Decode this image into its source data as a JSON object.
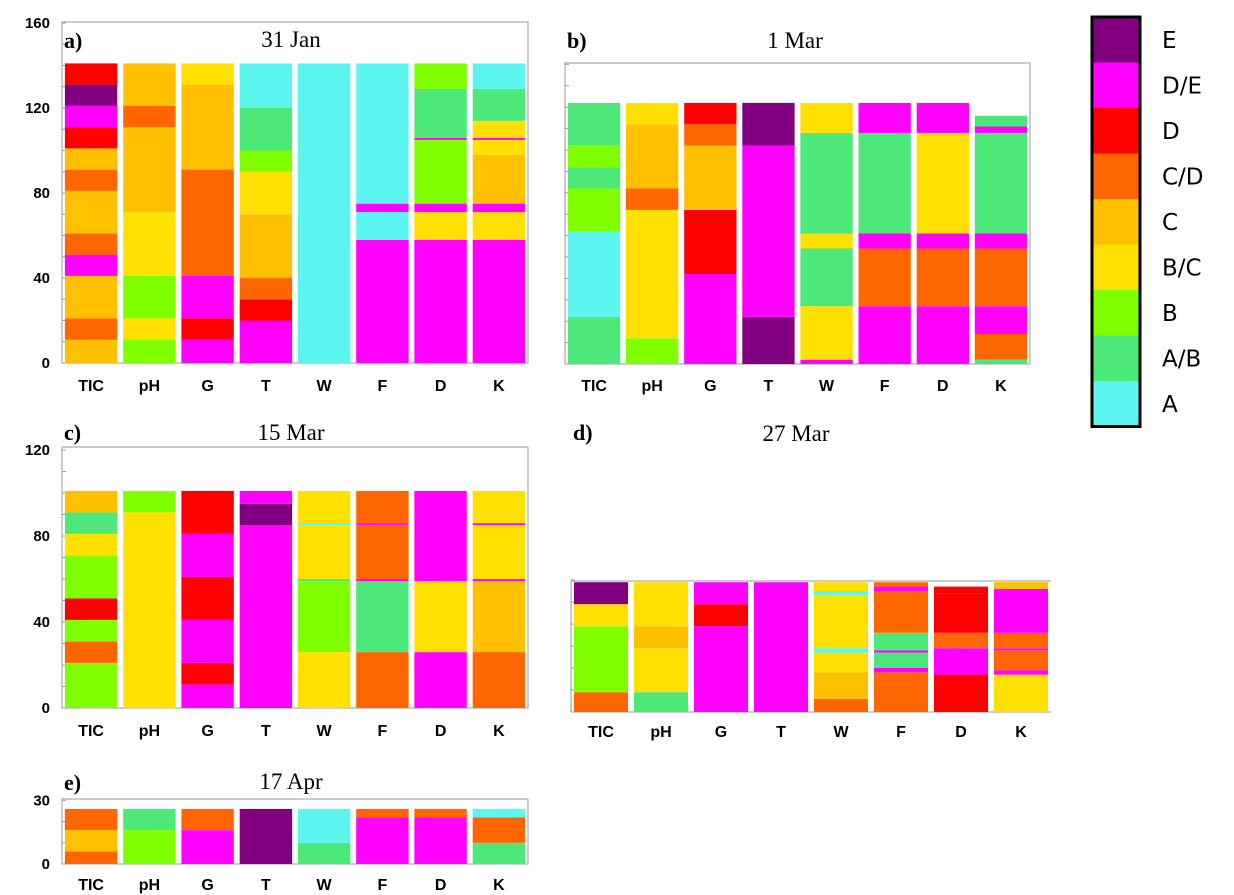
{
  "chart_data": [
    {
      "type": "bar",
      "stacked": true,
      "panel_label": "a)",
      "title": "31 Jan",
      "categories": [
        "TIC",
        "pH",
        "G",
        "T",
        "W",
        "F",
        "D",
        "K"
      ],
      "ylim": [
        0,
        160
      ],
      "yticks": [
        "0",
        "40",
        "80",
        "120",
        "160"
      ],
      "stacks": [
        [
          {
            "c": "C",
            "v": 11
          },
          {
            "c": "C/D",
            "v": 10
          },
          {
            "c": "C",
            "v": 20
          },
          {
            "c": "D/E",
            "v": 10
          },
          {
            "c": "C/D",
            "v": 10
          },
          {
            "c": "C",
            "v": 20
          },
          {
            "c": "C/D",
            "v": 10
          },
          {
            "c": "C",
            "v": 10
          },
          {
            "c": "D",
            "v": 10
          },
          {
            "c": "D/E",
            "v": 10
          },
          {
            "c": "E",
            "v": 10
          },
          {
            "c": "D",
            "v": 10
          }
        ],
        [
          {
            "c": "B",
            "v": 11
          },
          {
            "c": "B/C",
            "v": 10
          },
          {
            "c": "B",
            "v": 20
          },
          {
            "c": "B/C",
            "v": 10
          },
          {
            "c": "B/C",
            "v": 20
          },
          {
            "c": "C",
            "v": 40
          },
          {
            "c": "C/D",
            "v": 10
          },
          {
            "c": "C",
            "v": 20
          }
        ],
        [
          {
            "c": "D/E",
            "v": 11
          },
          {
            "c": "D",
            "v": 10
          },
          {
            "c": "D/E",
            "v": 20
          },
          {
            "c": "C/D",
            "v": 50
          },
          {
            "c": "C",
            "v": 40
          },
          {
            "c": "B/C",
            "v": 10
          }
        ],
        [
          {
            "c": "D/E",
            "v": 20
          },
          {
            "c": "D",
            "v": 10
          },
          {
            "c": "C/D",
            "v": 10
          },
          {
            "c": "C",
            "v": 30
          },
          {
            "c": "B/C",
            "v": 20
          },
          {
            "c": "B",
            "v": 10
          },
          {
            "c": "A/B",
            "v": 20
          },
          {
            "c": "A",
            "v": 21
          }
        ],
        [
          {
            "c": "A",
            "v": 141
          }
        ],
        [
          {
            "c": "D/E",
            "v": 58
          },
          {
            "c": "A",
            "v": 13
          },
          {
            "c": "D/E",
            "v": 4
          },
          {
            "c": "A",
            "v": 66
          }
        ],
        [
          {
            "c": "D/E",
            "v": 58
          },
          {
            "c": "B/C",
            "v": 13
          },
          {
            "c": "D/E",
            "v": 4
          },
          {
            "c": "B",
            "v": 30
          },
          {
            "c": "D/E",
            "v": 1
          },
          {
            "c": "A/B",
            "v": 23
          },
          {
            "c": "B",
            "v": 12
          }
        ],
        [
          {
            "c": "D/E",
            "v": 58
          },
          {
            "c": "B/C",
            "v": 13
          },
          {
            "c": "D/E",
            "v": 4
          },
          {
            "c": "C",
            "v": 23
          },
          {
            "c": "B/C",
            "v": 7
          },
          {
            "c": "D/E",
            "v": 1
          },
          {
            "c": "B/C",
            "v": 8
          },
          {
            "c": "A/B",
            "v": 15
          },
          {
            "c": "A",
            "v": 12
          }
        ]
      ]
    },
    {
      "type": "bar",
      "stacked": true,
      "panel_label": "b)",
      "title": "1 Mar",
      "categories": [
        "TIC",
        "pH",
        "G",
        "T",
        "W",
        "F",
        "D",
        "K"
      ],
      "ylim": [
        0,
        140
      ],
      "yticks": [],
      "stacks": [
        [
          {
            "c": "A/B",
            "v": 22
          },
          {
            "c": "A",
            "v": 40
          },
          {
            "c": "B",
            "v": 20
          },
          {
            "c": "A/B",
            "v": 10
          },
          {
            "c": "B",
            "v": 10
          },
          {
            "c": "A/B",
            "v": 20
          }
        ],
        [
          {
            "c": "B",
            "v": 12
          },
          {
            "c": "B/C",
            "v": 60
          },
          {
            "c": "C/D",
            "v": 10
          },
          {
            "c": "C",
            "v": 30
          },
          {
            "c": "B/C",
            "v": 10
          }
        ],
        [
          {
            "c": "D/E",
            "v": 42
          },
          {
            "c": "D",
            "v": 30
          },
          {
            "c": "C",
            "v": 30
          },
          {
            "c": "C/D",
            "v": 10
          },
          {
            "c": "D",
            "v": 10
          }
        ],
        [
          {
            "c": "E",
            "v": 22
          },
          {
            "c": "D/E",
            "v": 80
          },
          {
            "c": "E",
            "v": 20
          }
        ],
        [
          {
            "c": "D/E",
            "v": 2
          },
          {
            "c": "B/C",
            "v": 25
          },
          {
            "c": "A/B",
            "v": 27
          },
          {
            "c": "B/C",
            "v": 7
          },
          {
            "c": "A/B",
            "v": 47
          },
          {
            "c": "B/C",
            "v": 14
          }
        ],
        [
          {
            "c": "D/E",
            "v": 27
          },
          {
            "c": "C/D",
            "v": 27
          },
          {
            "c": "D/E",
            "v": 7
          },
          {
            "c": "A/B",
            "v": 47
          },
          {
            "c": "D/E",
            "v": 14
          }
        ],
        [
          {
            "c": "D/E",
            "v": 27
          },
          {
            "c": "C/D",
            "v": 27
          },
          {
            "c": "D/E",
            "v": 7
          },
          {
            "c": "B/C",
            "v": 47
          },
          {
            "c": "D/E",
            "v": 14
          }
        ],
        [
          {
            "c": "A/B",
            "v": 2
          },
          {
            "c": "C/D",
            "v": 12
          },
          {
            "c": "D/E",
            "v": 13
          },
          {
            "c": "C/D",
            "v": 27
          },
          {
            "c": "D/E",
            "v": 7
          },
          {
            "c": "A/B",
            "v": 47
          },
          {
            "c": "D/E",
            "v": 3
          },
          {
            "c": "A/B",
            "v": 5
          }
        ]
      ]
    },
    {
      "type": "bar",
      "stacked": true,
      "panel_label": "c)",
      "title": "15 Mar",
      "categories": [
        "TIC",
        "pH",
        "G",
        "T",
        "W",
        "F",
        "D",
        "K"
      ],
      "ylim": [
        0,
        120
      ],
      "yticks": [
        "0",
        "40",
        "80",
        "120"
      ],
      "stacks": [
        [
          {
            "c": "B",
            "v": 21
          },
          {
            "c": "C/D",
            "v": 10
          },
          {
            "c": "B",
            "v": 10
          },
          {
            "c": "D",
            "v": 10
          },
          {
            "c": "B",
            "v": 20
          },
          {
            "c": "B/C",
            "v": 10
          },
          {
            "c": "A/B",
            "v": 10
          },
          {
            "c": "C",
            "v": 10
          }
        ],
        [
          {
            "c": "B/C",
            "v": 91
          },
          {
            "c": "B",
            "v": 10
          }
        ],
        [
          {
            "c": "D/E",
            "v": 11
          },
          {
            "c": "D",
            "v": 10
          },
          {
            "c": "D/E",
            "v": 20
          },
          {
            "c": "D",
            "v": 20
          },
          {
            "c": "D/E",
            "v": 20
          },
          {
            "c": "D",
            "v": 20
          }
        ],
        [
          {
            "c": "D/E",
            "v": 85
          },
          {
            "c": "E",
            "v": 10
          },
          {
            "c": "D/E",
            "v": 6
          }
        ],
        [
          {
            "c": "B/C",
            "v": 26
          },
          {
            "c": "B",
            "v": 33
          },
          {
            "c": "A/B",
            "v": 1
          },
          {
            "c": "B/C",
            "v": 25
          },
          {
            "c": "A",
            "v": 1
          },
          {
            "c": "B/C",
            "v": 15
          }
        ],
        [
          {
            "c": "C/D",
            "v": 26
          },
          {
            "c": "A/B",
            "v": 33
          },
          {
            "c": "D/E",
            "v": 1
          },
          {
            "c": "C/D",
            "v": 25
          },
          {
            "c": "D/E",
            "v": 1
          },
          {
            "c": "C/D",
            "v": 15
          }
        ],
        [
          {
            "c": "D/E",
            "v": 26
          },
          {
            "c": "B/C",
            "v": 33
          },
          {
            "c": "D/E",
            "v": 42
          }
        ],
        [
          {
            "c": "C/D",
            "v": 26
          },
          {
            "c": "C",
            "v": 33
          },
          {
            "c": "D/E",
            "v": 1
          },
          {
            "c": "B/C",
            "v": 25
          },
          {
            "c": "D/E",
            "v": 1
          },
          {
            "c": "B/C",
            "v": 15
          }
        ]
      ]
    },
    {
      "type": "bar",
      "stacked": true,
      "panel_label": "d)",
      "title": "27 Mar",
      "categories": [
        "TIC",
        "pH",
        "G",
        "T",
        "W",
        "F",
        "D",
        "K"
      ],
      "ylim": [
        0,
        60
      ],
      "yticks": [],
      "stacks": [
        [
          {
            "c": "C/D",
            "v": 9
          },
          {
            "c": "B",
            "v": 30
          },
          {
            "c": "B/C",
            "v": 10
          },
          {
            "c": "E",
            "v": 10
          }
        ],
        [
          {
            "c": "A/B",
            "v": 9
          },
          {
            "c": "B/C",
            "v": 20
          },
          {
            "c": "C",
            "v": 10
          },
          {
            "c": "B/C",
            "v": 20
          }
        ],
        [
          {
            "c": "D/E",
            "v": 39
          },
          {
            "c": "D",
            "v": 10
          },
          {
            "c": "D/E",
            "v": 10
          }
        ],
        [
          {
            "c": "D/E",
            "v": 59
          }
        ],
        [
          {
            "c": "C/D",
            "v": 6
          },
          {
            "c": "C",
            "v": 12
          },
          {
            "c": "B/C",
            "v": 9
          },
          {
            "c": "A",
            "v": 2
          },
          {
            "c": "B/C",
            "v": 24
          },
          {
            "c": "A",
            "v": 2
          },
          {
            "c": "B/C",
            "v": 4
          }
        ],
        [
          {
            "c": "C/D",
            "v": 18
          },
          {
            "c": "D/E",
            "v": 2
          },
          {
            "c": "A/B",
            "v": 7
          },
          {
            "c": "D/E",
            "v": 1
          },
          {
            "c": "A/B",
            "v": 8
          },
          {
            "c": "C/D",
            "v": 19
          },
          {
            "c": "D/E",
            "v": 2
          },
          {
            "c": "C/D",
            "v": 2
          }
        ],
        [
          {
            "c": "D",
            "v": 17
          },
          {
            "c": "D/E",
            "v": 12
          },
          {
            "c": "C/D",
            "v": 7
          },
          {
            "c": "D",
            "v": 18
          },
          {
            "c": "D",
            "v": 3
          }
        ],
        [
          {
            "c": "B/C",
            "v": 17
          },
          {
            "c": "D/E",
            "v": 2
          },
          {
            "c": "C/D",
            "v": 9
          },
          {
            "c": "D/E",
            "v": 1
          },
          {
            "c": "C/D",
            "v": 7
          },
          {
            "c": "D/E",
            "v": 20
          },
          {
            "c": "C",
            "v": 3
          }
        ]
      ]
    },
    {
      "type": "bar",
      "stacked": true,
      "panel_label": "e)",
      "title": "17 Apr",
      "categories": [
        "TIC",
        "pH",
        "G",
        "T",
        "W",
        "F",
        "D",
        "K"
      ],
      "ylim": [
        0,
        30
      ],
      "yticks": [
        "0",
        "30"
      ],
      "stacks": [
        [
          {
            "c": "C/D",
            "v": 6
          },
          {
            "c": "C",
            "v": 10
          },
          {
            "c": "C/D",
            "v": 10
          }
        ],
        [
          {
            "c": "B",
            "v": 16
          },
          {
            "c": "A/B",
            "v": 10
          }
        ],
        [
          {
            "c": "D/E",
            "v": 16
          },
          {
            "c": "C/D",
            "v": 10
          }
        ],
        [
          {
            "c": "E",
            "v": 26
          }
        ],
        [
          {
            "c": "A/B",
            "v": 10
          },
          {
            "c": "A",
            "v": 16
          }
        ],
        [
          {
            "c": "D/E",
            "v": 22
          },
          {
            "c": "C/D",
            "v": 4
          }
        ],
        [
          {
            "c": "D/E",
            "v": 22
          },
          {
            "c": "C/D",
            "v": 4
          }
        ],
        [
          {
            "c": "A/B",
            "v": 10
          },
          {
            "c": "C/D",
            "v": 12
          },
          {
            "c": "A",
            "v": 4
          }
        ]
      ]
    }
  ],
  "legend": {
    "placement": "right",
    "items": [
      {
        "label": "E",
        "color": "#800080"
      },
      {
        "label": "D/E",
        "color": "#ff00ff"
      },
      {
        "label": "D",
        "color": "#ff0000"
      },
      {
        "label": "C/D",
        "color": "#ff6600"
      },
      {
        "label": "C",
        "color": "#ffc000"
      },
      {
        "label": "B/C",
        "color": "#ffe000"
      },
      {
        "label": "B",
        "color": "#80ff00"
      },
      {
        "label": "A/B",
        "color": "#4ce87a"
      },
      {
        "label": "A",
        "color": "#5cf5f0"
      }
    ]
  }
}
